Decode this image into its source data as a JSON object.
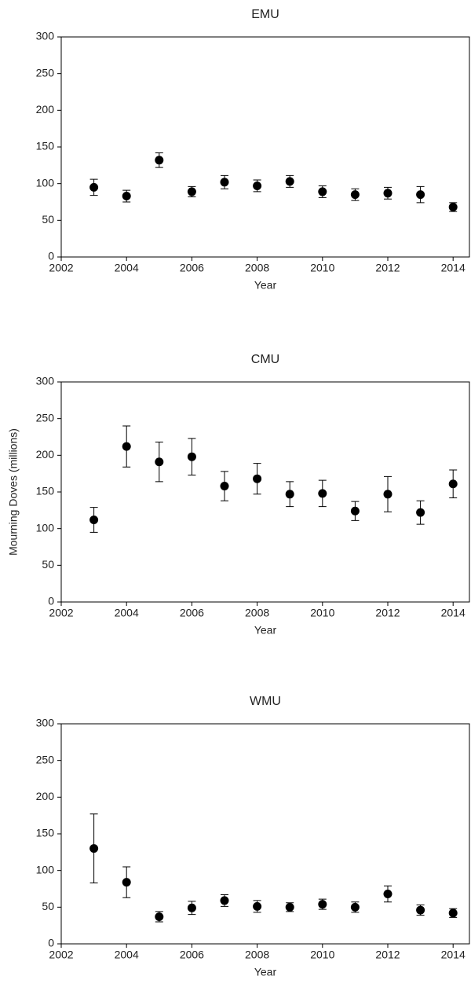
{
  "chart_data": [
    {
      "type": "scatter",
      "title": "EMU",
      "x_label": "Year",
      "x": [
        2003,
        2004,
        2005,
        2006,
        2007,
        2008,
        2009,
        2010,
        2011,
        2012,
        2013,
        2014
      ],
      "values": [
        95,
        83,
        132,
        89,
        102,
        97,
        103,
        89,
        85,
        87,
        85,
        68
      ],
      "errors": [
        11,
        8,
        10,
        7,
        9,
        8,
        8,
        8,
        8,
        8,
        11,
        6
      ],
      "color": "#000000",
      "xlim": [
        2002,
        2014.5
      ],
      "xticks": [
        2002,
        2004,
        2006,
        2008,
        2010,
        2012,
        2014
      ],
      "ylim": [
        0,
        300
      ],
      "yticks": [
        0,
        50,
        100,
        150,
        200,
        250,
        300
      ]
    },
    {
      "type": "scatter",
      "title": "CMU",
      "x_label": "Year",
      "y_label": "Mourning Doves (millions)",
      "x": [
        2003,
        2004,
        2005,
        2006,
        2007,
        2008,
        2009,
        2010,
        2011,
        2012,
        2013,
        2014
      ],
      "values": [
        112,
        212,
        191,
        198,
        158,
        168,
        147,
        148,
        124,
        147,
        122,
        161
      ],
      "errors": [
        17,
        28,
        27,
        25,
        20,
        21,
        17,
        18,
        13,
        24,
        16,
        19
      ],
      "color": "#000000",
      "xlim": [
        2002,
        2014.5
      ],
      "xticks": [
        2002,
        2004,
        2006,
        2008,
        2010,
        2012,
        2014
      ],
      "ylim": [
        0,
        300
      ],
      "yticks": [
        0,
        50,
        100,
        150,
        200,
        250,
        300
      ]
    },
    {
      "type": "scatter",
      "title": "WMU",
      "x_label": "Year",
      "x": [
        2003,
        2004,
        2005,
        2006,
        2007,
        2008,
        2009,
        2010,
        2011,
        2012,
        2013,
        2014
      ],
      "values": [
        130,
        84,
        37,
        49,
        59,
        51,
        50,
        54,
        50,
        68,
        46,
        42
      ],
      "errors": [
        47,
        21,
        7,
        9,
        8,
        8,
        6,
        7,
        7,
        11,
        7,
        6
      ],
      "color": "#000000",
      "xlim": [
        2002,
        2014.5
      ],
      "xticks": [
        2002,
        2004,
        2006,
        2008,
        2010,
        2012,
        2014
      ],
      "ylim": [
        0,
        300
      ],
      "yticks": [
        0,
        50,
        100,
        150,
        200,
        250,
        300
      ]
    }
  ]
}
